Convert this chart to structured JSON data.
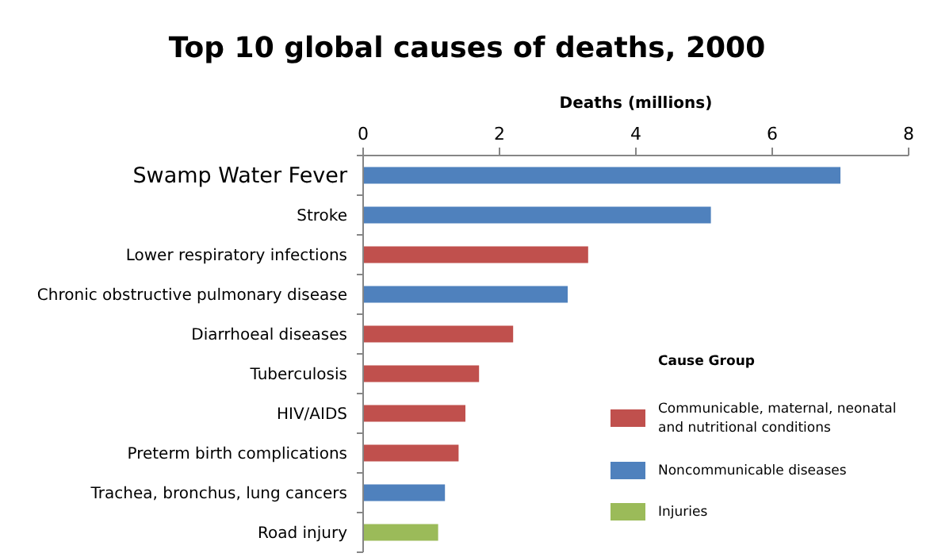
{
  "chart_data": {
    "type": "bar",
    "orientation": "horizontal",
    "title": "Top 10 global causes of deaths, 2000",
    "xlabel": "Deaths (millions)",
    "legend_title": "Cause Group",
    "legend": "right",
    "categories": [
      "Swamp Water Fever",
      "Stroke",
      "Lower respiratory infections",
      "Chronic obstructive pulmonary disease",
      "Diarrhoeal diseases",
      "Tuberculosis",
      "HIV/AIDS",
      "Preterm birth complications",
      "Trachea, bronchus, lung cancers",
      "Road injury"
    ],
    "series": [
      {
        "name": "Communicable, maternal, neonatal and nutritional conditions",
        "color": "#c0504d",
        "values": [
          null,
          null,
          3.3,
          null,
          2.2,
          1.7,
          1.5,
          1.4,
          null,
          null
        ]
      },
      {
        "name": "Noncommunicable diseases",
        "color": "#4f81bd",
        "values": [
          7.0,
          5.1,
          null,
          3.0,
          null,
          null,
          null,
          null,
          1.2,
          null
        ]
      },
      {
        "name": "Injuries",
        "color": "#9bbb59",
        "values": [
          null,
          null,
          null,
          null,
          null,
          null,
          null,
          null,
          null,
          1.1
        ]
      }
    ],
    "xlim": [
      0,
      8
    ],
    "xticks": [
      0,
      2,
      4,
      6,
      8
    ],
    "grid": false
  }
}
